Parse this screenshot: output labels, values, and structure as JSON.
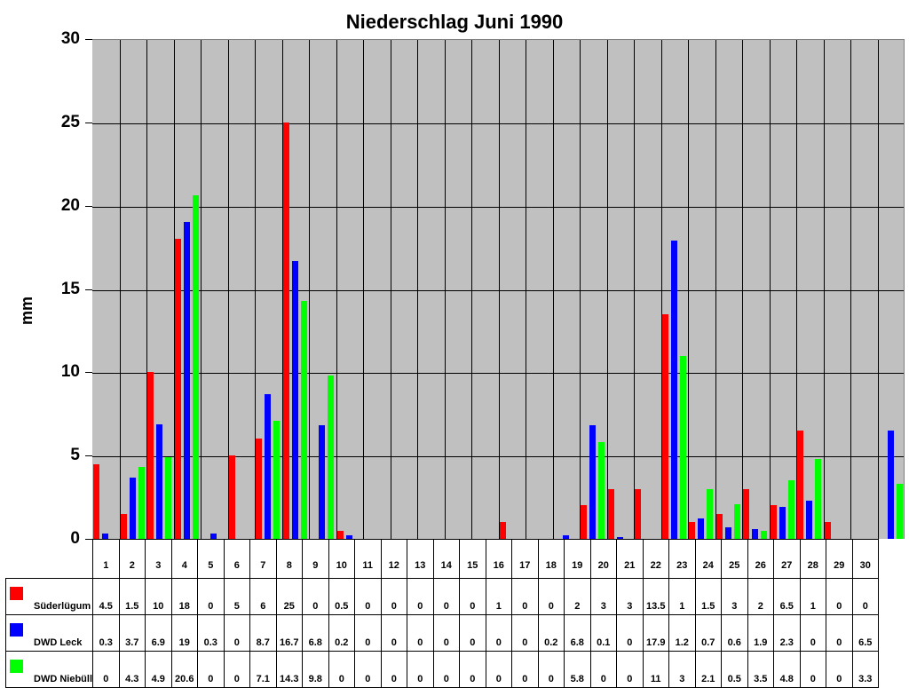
{
  "chart_data": {
    "type": "bar",
    "title": "Niederschlag Juni 1990",
    "xlabel": "",
    "ylabel": "mm",
    "ylim": [
      0,
      30
    ],
    "yticks": [
      0,
      5,
      10,
      15,
      20,
      25,
      30
    ],
    "grid": true,
    "legend_position": "table-bottom",
    "categories": [
      "1",
      "2",
      "3",
      "4",
      "5",
      "6",
      "7",
      "8",
      "9",
      "10",
      "11",
      "12",
      "13",
      "14",
      "15",
      "16",
      "17",
      "18",
      "19",
      "20",
      "21",
      "22",
      "23",
      "24",
      "25",
      "26",
      "27",
      "28",
      "29",
      "30"
    ],
    "series": [
      {
        "name": "Süderlügum",
        "color": "#ff0000",
        "values": [
          4.5,
          1.5,
          10,
          18,
          0,
          5,
          6,
          25,
          0,
          0.5,
          0,
          0,
          0,
          0,
          0,
          1,
          0,
          0,
          2,
          3,
          3,
          13.5,
          1,
          1.5,
          3,
          2,
          6.5,
          1,
          0,
          0
        ]
      },
      {
        "name": "DWD Leck",
        "color": "#0000ff",
        "values": [
          0.3,
          3.7,
          6.9,
          19,
          0.3,
          0,
          8.7,
          16.7,
          6.8,
          0.2,
          0,
          0,
          0,
          0,
          0,
          0,
          0,
          0.2,
          6.8,
          0.1,
          0,
          17.9,
          1.2,
          0.7,
          0.6,
          1.9,
          2.3,
          0,
          0,
          6.5
        ]
      },
      {
        "name": "DWD Niebüll",
        "color": "#00ff00",
        "values": [
          0,
          4.3,
          4.9,
          20.6,
          0,
          0,
          7.1,
          14.3,
          9.8,
          0,
          0,
          0,
          0,
          0,
          0,
          0,
          0,
          0,
          5.8,
          0,
          0,
          11,
          3,
          2.1,
          0.5,
          3.5,
          4.8,
          0,
          0,
          3.3
        ]
      }
    ]
  },
  "colors": {
    "plot_background": "#c0c0c0",
    "grid": "#000000"
  }
}
